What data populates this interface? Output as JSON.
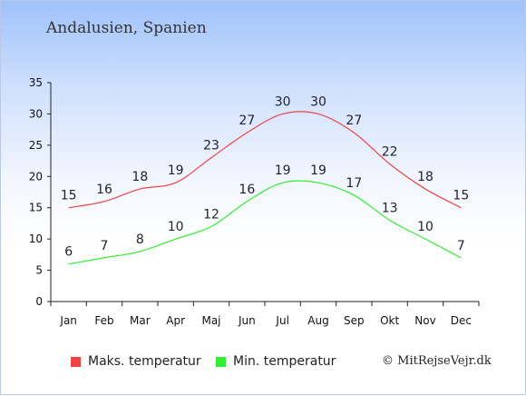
{
  "title": "Andalusien, Spanien",
  "credit": "© MitRejseVejr.dk",
  "chart_data": {
    "type": "line",
    "title": "Andalusien, Spanien",
    "categories": [
      "Jan",
      "Feb",
      "Mar",
      "Apr",
      "Maj",
      "Jun",
      "Jul",
      "Aug",
      "Sep",
      "Okt",
      "Nov",
      "Dec"
    ],
    "ylim": [
      0,
      35
    ],
    "yticks": [
      0,
      5,
      10,
      15,
      20,
      25,
      30,
      35
    ],
    "grid": false,
    "legend_position": "bottom",
    "series": [
      {
        "name": "Maks. temperatur",
        "color": "#ee4444",
        "values": [
          15,
          16,
          18,
          19,
          23,
          27,
          30,
          30,
          27,
          22,
          18,
          15
        ]
      },
      {
        "name": "Min. temperatur",
        "color": "#33ee33",
        "values": [
          6,
          7,
          8,
          10,
          12,
          16,
          19,
          19,
          17,
          13,
          10,
          7
        ]
      }
    ]
  }
}
